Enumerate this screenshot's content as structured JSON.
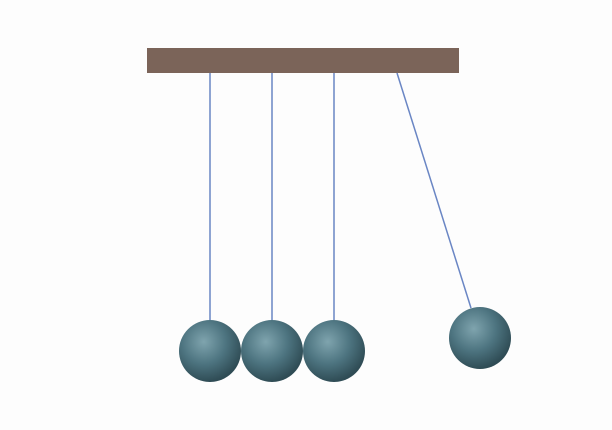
{
  "scene": {
    "background_color": "#fdfdfd",
    "bar_color": "#7b6459",
    "string_color": "#6a86c4",
    "ball_highlight_color": "#7fa4ae",
    "ball_mid_color": "#4d7480",
    "ball_shadow_color": "#2f4c55",
    "balls": [
      {
        "name": "ball-1",
        "state": "resting"
      },
      {
        "name": "ball-2",
        "state": "resting"
      },
      {
        "name": "ball-3",
        "state": "resting"
      },
      {
        "name": "ball-4",
        "state": "swung-out"
      }
    ]
  }
}
